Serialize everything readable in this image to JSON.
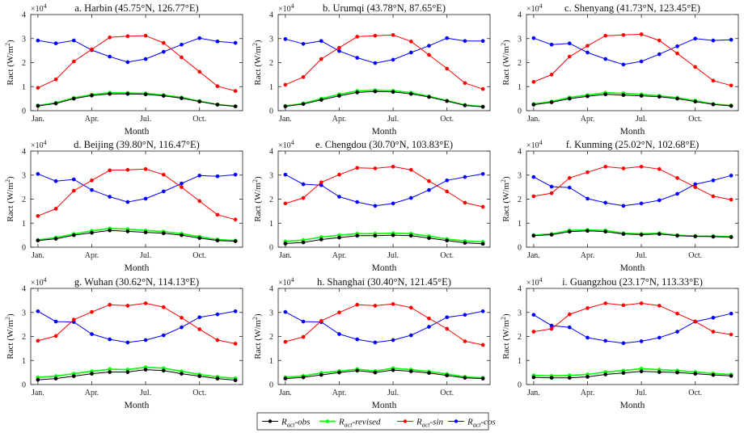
{
  "figure": {
    "ylabel_prefix": "Ract (W/m",
    "ylabel_sup": "2",
    "ylabel_suffix": ")",
    "multiplier_base": "×10",
    "multiplier_exp": "4",
    "xlabel": "Month"
  },
  "legend": [
    {
      "key": "obs",
      "sub": "act",
      "prefix": "R",
      "suffix": "-obs",
      "color": "#000000"
    },
    {
      "key": "revised",
      "sub": "act",
      "prefix": "R",
      "suffix": "-revised",
      "color": "#00ff00"
    },
    {
      "key": "sin",
      "sub": "act",
      "prefix": "R",
      "suffix": "-sin",
      "color": "#ff0000"
    },
    {
      "key": "cos",
      "sub": "act",
      "prefix": "R",
      "suffix": "-cos",
      "color": "#0000ff"
    }
  ],
  "chart_data": [
    {
      "type": "line",
      "title": "a. Harbin (45.75°N, 126.77°E)",
      "xlabel": "Month",
      "ylabel": "Ract (W/m2)",
      "x": [
        1,
        2,
        3,
        4,
        5,
        6,
        7,
        8,
        9,
        10,
        11,
        12
      ],
      "xticks": [
        "Jan.",
        "Apr.",
        "Jul.",
        "Oct."
      ],
      "xtick_positions": [
        1,
        4,
        7,
        10
      ],
      "yticks": [
        "0",
        "1",
        "2",
        "3",
        "4"
      ],
      "ylim": [
        0,
        4
      ],
      "xlim": [
        0.6,
        12.4
      ],
      "series": [
        {
          "name": "obs",
          "values": [
            0.2,
            0.3,
            0.5,
            0.63,
            0.7,
            0.7,
            0.68,
            0.62,
            0.52,
            0.38,
            0.25,
            0.18
          ]
        },
        {
          "name": "revised",
          "values": [
            0.22,
            0.33,
            0.53,
            0.67,
            0.75,
            0.74,
            0.72,
            0.65,
            0.55,
            0.4,
            0.26,
            0.18
          ]
        },
        {
          "name": "sin",
          "values": [
            0.95,
            1.3,
            2.05,
            2.55,
            3.05,
            3.1,
            3.12,
            2.82,
            2.22,
            1.62,
            1.02,
            0.82
          ]
        },
        {
          "name": "cos",
          "values": [
            2.92,
            2.8,
            2.92,
            2.52,
            2.25,
            2.02,
            2.15,
            2.45,
            2.75,
            3.02,
            2.88,
            2.82
          ]
        }
      ]
    },
    {
      "type": "line",
      "title": "b. Urumqi (43.78°N, 87.65°E)",
      "xlabel": "Month",
      "ylabel": "Ract (W/m2)",
      "x": [
        1,
        2,
        3,
        4,
        5,
        6,
        7,
        8,
        9,
        10,
        11,
        12
      ],
      "xticks": [
        "Jan.",
        "Apr.",
        "Jul.",
        "Oct."
      ],
      "xtick_positions": [
        1,
        4,
        7,
        10
      ],
      "yticks": [
        "0",
        "1",
        "2",
        "3",
        "4"
      ],
      "ylim": [
        0,
        4
      ],
      "xlim": [
        0.6,
        12.4
      ],
      "series": [
        {
          "name": "obs",
          "values": [
            0.18,
            0.28,
            0.45,
            0.62,
            0.76,
            0.8,
            0.78,
            0.7,
            0.57,
            0.4,
            0.22,
            0.16
          ]
        },
        {
          "name": "revised",
          "values": [
            0.2,
            0.3,
            0.5,
            0.68,
            0.82,
            0.85,
            0.83,
            0.75,
            0.6,
            0.42,
            0.24,
            0.17
          ]
        },
        {
          "name": "sin",
          "values": [
            1.08,
            1.4,
            2.15,
            2.62,
            3.08,
            3.12,
            3.15,
            2.88,
            2.32,
            1.75,
            1.15,
            0.9
          ]
        },
        {
          "name": "cos",
          "values": [
            2.98,
            2.78,
            2.9,
            2.48,
            2.2,
            1.98,
            2.12,
            2.42,
            2.7,
            3.02,
            2.9,
            2.9
          ]
        }
      ]
    },
    {
      "type": "line",
      "title": "c. Shenyang (41.73°N, 123.45°E)",
      "xlabel": "Month",
      "ylabel": "Ract (W/m2)",
      "x": [
        1,
        2,
        3,
        4,
        5,
        6,
        7,
        8,
        9,
        10,
        11,
        12
      ],
      "xticks": [
        "Jan.",
        "Apr.",
        "Jul.",
        "Oct."
      ],
      "xtick_positions": [
        1,
        4,
        7,
        10
      ],
      "yticks": [
        "0",
        "1",
        "2",
        "3",
        "4"
      ],
      "ylim": [
        0,
        4
      ],
      "xlim": [
        0.6,
        12.4
      ],
      "series": [
        {
          "name": "obs",
          "values": [
            0.25,
            0.35,
            0.5,
            0.6,
            0.68,
            0.65,
            0.62,
            0.58,
            0.5,
            0.38,
            0.26,
            0.2
          ]
        },
        {
          "name": "revised",
          "values": [
            0.28,
            0.38,
            0.55,
            0.65,
            0.75,
            0.72,
            0.68,
            0.62,
            0.54,
            0.42,
            0.28,
            0.22
          ]
        },
        {
          "name": "sin",
          "values": [
            1.2,
            1.5,
            2.25,
            2.7,
            3.12,
            3.15,
            3.18,
            2.92,
            2.38,
            1.82,
            1.25,
            1.05
          ]
        },
        {
          "name": "cos",
          "values": [
            3.02,
            2.75,
            2.8,
            2.42,
            2.15,
            1.92,
            2.05,
            2.35,
            2.68,
            3.0,
            2.92,
            2.95
          ]
        }
      ]
    },
    {
      "type": "line",
      "title": "d. Beijing (39.80°N, 116.47°E)",
      "xlabel": "Month",
      "ylabel": "Ract (W/m2)",
      "x": [
        1,
        2,
        3,
        4,
        5,
        6,
        7,
        8,
        9,
        10,
        11,
        12
      ],
      "xticks": [
        "Jan.",
        "Apr.",
        "Jul.",
        "Oct."
      ],
      "xtick_positions": [
        1,
        4,
        7,
        10
      ],
      "yticks": [
        "0",
        "1",
        "2",
        "3",
        "4"
      ],
      "ylim": [
        0,
        4
      ],
      "xlim": [
        0.6,
        12.4
      ],
      "series": [
        {
          "name": "obs",
          "values": [
            0.28,
            0.35,
            0.5,
            0.6,
            0.7,
            0.66,
            0.62,
            0.58,
            0.5,
            0.38,
            0.28,
            0.25
          ]
        },
        {
          "name": "revised",
          "values": [
            0.3,
            0.4,
            0.55,
            0.68,
            0.78,
            0.75,
            0.7,
            0.65,
            0.56,
            0.44,
            0.32,
            0.28
          ]
        },
        {
          "name": "sin",
          "values": [
            1.3,
            1.6,
            2.35,
            2.78,
            3.2,
            3.22,
            3.25,
            3.02,
            2.5,
            1.92,
            1.35,
            1.15
          ]
        },
        {
          "name": "cos",
          "values": [
            3.05,
            2.75,
            2.82,
            2.38,
            2.1,
            1.88,
            2.02,
            2.32,
            2.65,
            2.98,
            2.95,
            3.02
          ]
        }
      ]
    },
    {
      "type": "line",
      "title": "e. Chengdou (30.70°N, 103.83°E)",
      "xlabel": "Month",
      "ylabel": "Ract (W/m2)",
      "x": [
        1,
        2,
        3,
        4,
        5,
        6,
        7,
        8,
        9,
        10,
        11,
        12
      ],
      "xticks": [
        "Jan.",
        "Apr.",
        "Jul.",
        "Oct."
      ],
      "xtick_positions": [
        1,
        4,
        7,
        10
      ],
      "yticks": [
        "0",
        "1",
        "2",
        "3",
        "4"
      ],
      "ylim": [
        0,
        4
      ],
      "xlim": [
        0.6,
        12.4
      ],
      "series": [
        {
          "name": "obs",
          "values": [
            0.15,
            0.2,
            0.32,
            0.4,
            0.48,
            0.48,
            0.5,
            0.48,
            0.38,
            0.28,
            0.18,
            0.14
          ]
        },
        {
          "name": "revised",
          "values": [
            0.24,
            0.3,
            0.42,
            0.5,
            0.56,
            0.56,
            0.58,
            0.56,
            0.46,
            0.34,
            0.26,
            0.22
          ]
        },
        {
          "name": "sin",
          "values": [
            1.82,
            2.05,
            2.7,
            3.02,
            3.3,
            3.28,
            3.35,
            3.22,
            2.75,
            2.32,
            1.85,
            1.68
          ]
        },
        {
          "name": "cos",
          "values": [
            3.02,
            2.62,
            2.58,
            2.1,
            1.88,
            1.72,
            1.82,
            2.05,
            2.38,
            2.78,
            2.92,
            3.05
          ]
        }
      ]
    },
    {
      "type": "line",
      "title": "f. Kunming (25.02°N, 102.68°E)",
      "xlabel": "Month",
      "ylabel": "Ract (W/m2)",
      "x": [
        1,
        2,
        3,
        4,
        5,
        6,
        7,
        8,
        9,
        10,
        11,
        12
      ],
      "xticks": [
        "Jan.",
        "Apr.",
        "Jul.",
        "Oct."
      ],
      "xtick_positions": [
        1,
        4,
        7,
        10
      ],
      "yticks": [
        "0",
        "1",
        "2",
        "3",
        "4"
      ],
      "ylim": [
        0,
        4
      ],
      "xlim": [
        0.6,
        12.4
      ],
      "series": [
        {
          "name": "obs",
          "values": [
            0.48,
            0.52,
            0.65,
            0.68,
            0.65,
            0.55,
            0.52,
            0.55,
            0.48,
            0.45,
            0.44,
            0.42
          ]
        },
        {
          "name": "revised",
          "values": [
            0.5,
            0.55,
            0.7,
            0.72,
            0.7,
            0.58,
            0.55,
            0.58,
            0.5,
            0.47,
            0.46,
            0.44
          ]
        },
        {
          "name": "sin",
          "values": [
            2.12,
            2.25,
            2.88,
            3.12,
            3.35,
            3.28,
            3.35,
            3.25,
            2.88,
            2.5,
            2.12,
            1.98
          ]
        },
        {
          "name": "cos",
          "values": [
            2.92,
            2.52,
            2.48,
            2.02,
            1.85,
            1.72,
            1.82,
            1.95,
            2.22,
            2.62,
            2.78,
            2.98
          ]
        }
      ]
    },
    {
      "type": "line",
      "title": "g. Wuhan (30.62°N, 114.13°E)",
      "xlabel": "Month",
      "ylabel": "Ract (W/m2)",
      "x": [
        1,
        2,
        3,
        4,
        5,
        6,
        7,
        8,
        9,
        10,
        11,
        12
      ],
      "xticks": [
        "Jan.",
        "Apr.",
        "Jul.",
        "Oct."
      ],
      "xtick_positions": [
        1,
        4,
        7,
        10
      ],
      "yticks": [
        "0",
        "1",
        "2",
        "3",
        "4"
      ],
      "ylim": [
        0,
        4
      ],
      "xlim": [
        0.6,
        12.4
      ],
      "series": [
        {
          "name": "obs",
          "values": [
            0.2,
            0.25,
            0.35,
            0.45,
            0.52,
            0.52,
            0.62,
            0.58,
            0.45,
            0.35,
            0.25,
            0.18
          ]
        },
        {
          "name": "revised",
          "values": [
            0.3,
            0.35,
            0.45,
            0.55,
            0.64,
            0.62,
            0.72,
            0.68,
            0.55,
            0.42,
            0.32,
            0.26
          ]
        },
        {
          "name": "sin",
          "values": [
            1.82,
            2.02,
            2.7,
            3.02,
            3.32,
            3.28,
            3.38,
            3.22,
            2.78,
            2.3,
            1.85,
            1.7
          ]
        },
        {
          "name": "cos",
          "values": [
            3.05,
            2.62,
            2.6,
            2.1,
            1.88,
            1.75,
            1.85,
            2.05,
            2.38,
            2.8,
            2.92,
            3.05
          ]
        }
      ]
    },
    {
      "type": "line",
      "title": "h. Shanghai (30.40°N, 121.45°E)",
      "xlabel": "Month",
      "ylabel": "Ract (W/m2)",
      "x": [
        1,
        2,
        3,
        4,
        5,
        6,
        7,
        8,
        9,
        10,
        11,
        12
      ],
      "xticks": [
        "Jan.",
        "Apr.",
        "Jul.",
        "Oct."
      ],
      "xtick_positions": [
        1,
        4,
        7,
        10
      ],
      "yticks": [
        "0",
        "1",
        "2",
        "3",
        "4"
      ],
      "ylim": [
        0,
        4
      ],
      "xlim": [
        0.6,
        12.4
      ],
      "series": [
        {
          "name": "obs",
          "values": [
            0.25,
            0.3,
            0.4,
            0.5,
            0.58,
            0.5,
            0.6,
            0.55,
            0.48,
            0.38,
            0.28,
            0.25
          ]
        },
        {
          "name": "revised",
          "values": [
            0.3,
            0.36,
            0.48,
            0.56,
            0.64,
            0.56,
            0.68,
            0.62,
            0.54,
            0.44,
            0.32,
            0.28
          ]
        },
        {
          "name": "sin",
          "values": [
            1.78,
            1.98,
            2.65,
            3.0,
            3.32,
            3.28,
            3.35,
            3.2,
            2.75,
            2.32,
            1.8,
            1.65
          ]
        },
        {
          "name": "cos",
          "values": [
            3.02,
            2.62,
            2.6,
            2.1,
            1.88,
            1.75,
            1.85,
            2.05,
            2.4,
            2.8,
            2.9,
            3.05
          ]
        }
      ]
    },
    {
      "type": "line",
      "title": "i. Guangzhou (23.17°N, 113.33°E)",
      "xlabel": "Month",
      "ylabel": "Ract (W/m2)",
      "x": [
        1,
        2,
        3,
        4,
        5,
        6,
        7,
        8,
        9,
        10,
        11,
        12
      ],
      "xticks": [
        "Jan.",
        "Apr.",
        "Jul.",
        "Oct."
      ],
      "xtick_positions": [
        1,
        4,
        7,
        10
      ],
      "yticks": [
        "0",
        "1",
        "2",
        "3",
        "4"
      ],
      "ylim": [
        0,
        4
      ],
      "xlim": [
        0.6,
        12.4
      ],
      "series": [
        {
          "name": "obs",
          "values": [
            0.3,
            0.28,
            0.28,
            0.32,
            0.42,
            0.48,
            0.55,
            0.52,
            0.5,
            0.45,
            0.4,
            0.36
          ]
        },
        {
          "name": "revised",
          "values": [
            0.38,
            0.36,
            0.38,
            0.42,
            0.52,
            0.58,
            0.66,
            0.62,
            0.58,
            0.52,
            0.46,
            0.42
          ]
        },
        {
          "name": "sin",
          "values": [
            2.2,
            2.32,
            2.92,
            3.18,
            3.38,
            3.3,
            3.38,
            3.28,
            2.95,
            2.62,
            2.2,
            2.08
          ]
        },
        {
          "name": "cos",
          "values": [
            2.9,
            2.45,
            2.38,
            1.95,
            1.82,
            1.72,
            1.8,
            1.95,
            2.2,
            2.62,
            2.78,
            2.95
          ]
        }
      ]
    }
  ]
}
